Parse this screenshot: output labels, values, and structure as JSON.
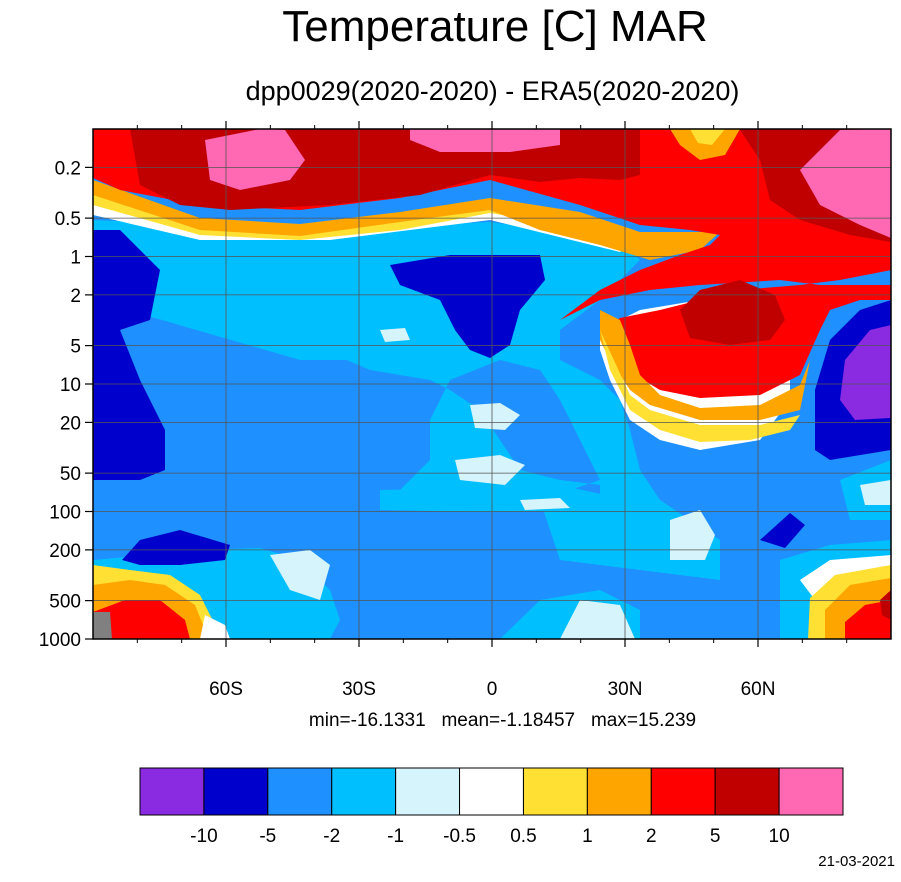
{
  "chart_data": {
    "type": "heatmap",
    "title": "Temperature [C] MAR",
    "subtitle": "dpp0029(2020-2020) - ERA5(2020-2020)",
    "x_ticks": [
      {
        "value": -60,
        "label": "60S"
      },
      {
        "value": -30,
        "label": "30S"
      },
      {
        "value": 0,
        "label": "0"
      },
      {
        "value": 30,
        "label": "30N"
      },
      {
        "value": 60,
        "label": "60N"
      }
    ],
    "xlim": [
      -90,
      90
    ],
    "y_ticks": [
      {
        "value": 0.2,
        "label": "0.2"
      },
      {
        "value": 0.5,
        "label": "0.5"
      },
      {
        "value": 1,
        "label": "1"
      },
      {
        "value": 2,
        "label": "2"
      },
      {
        "value": 5,
        "label": "5"
      },
      {
        "value": 10,
        "label": "10"
      },
      {
        "value": 20,
        "label": "20"
      },
      {
        "value": 50,
        "label": "50"
      },
      {
        "value": 100,
        "label": "100"
      },
      {
        "value": 200,
        "label": "200"
      },
      {
        "value": 500,
        "label": "500"
      },
      {
        "value": 1000,
        "label": "1000"
      }
    ],
    "y_scale": "log",
    "y_inverted": true,
    "grid": true,
    "stats": {
      "min": "min=-16.1331",
      "mean": "mean=-1.18457",
      "max": "max=15.239"
    },
    "colorbar": {
      "colors": [
        "#8a2be2",
        "#0000cd",
        "#1e90ff",
        "#00bfff",
        "#d6f4fb",
        "#ffffff",
        "#ffe033",
        "#ffa500",
        "#ff0000",
        "#c00000",
        "#ff69b4"
      ],
      "levels": [
        "-10",
        "-5",
        "-2",
        "-1",
        "-0.5",
        "0.5",
        "1",
        "2",
        "5",
        "10"
      ]
    },
    "field": [
      {
        "x": -90,
        "y": 0.2,
        "value": 5
      },
      {
        "x": -60,
        "y": 0.2,
        "value": 7
      },
      {
        "x": -45,
        "y": 0.2,
        "value": 11
      },
      {
        "x": 0,
        "y": 0.2,
        "value": 8
      },
      {
        "x": 45,
        "y": 0.2,
        "value": 1.5
      },
      {
        "x": 80,
        "y": 0.2,
        "value": 11
      },
      {
        "x": 90,
        "y": 0.5,
        "value": 11
      },
      {
        "x": -60,
        "y": 1,
        "value": -4
      },
      {
        "x": -80,
        "y": 2,
        "value": -6
      },
      {
        "x": -30,
        "y": 2,
        "value": -3
      },
      {
        "x": 0,
        "y": 2,
        "value": -6
      },
      {
        "x": -45,
        "y": 5,
        "value": -1.5
      },
      {
        "x": 55,
        "y": 5,
        "value": 6
      },
      {
        "x": 40,
        "y": 2,
        "value": 3
      },
      {
        "x": 85,
        "y": 20,
        "value": -12
      },
      {
        "x": 75,
        "y": 10,
        "value": -6
      },
      {
        "x": 0,
        "y": 50,
        "value": -0.7
      },
      {
        "x": 0,
        "y": 100,
        "value": -1.5
      },
      {
        "x": -65,
        "y": 200,
        "value": -6
      },
      {
        "x": 60,
        "y": 200,
        "value": -6
      },
      {
        "x": -80,
        "y": 1000,
        "value": 3
      },
      {
        "x": 85,
        "y": 1000,
        "value": 6
      },
      {
        "x": 30,
        "y": 500,
        "value": -1
      }
    ]
  },
  "footer": {
    "date": "21-03-2021"
  },
  "colors": {
    "missing": "#808080"
  }
}
